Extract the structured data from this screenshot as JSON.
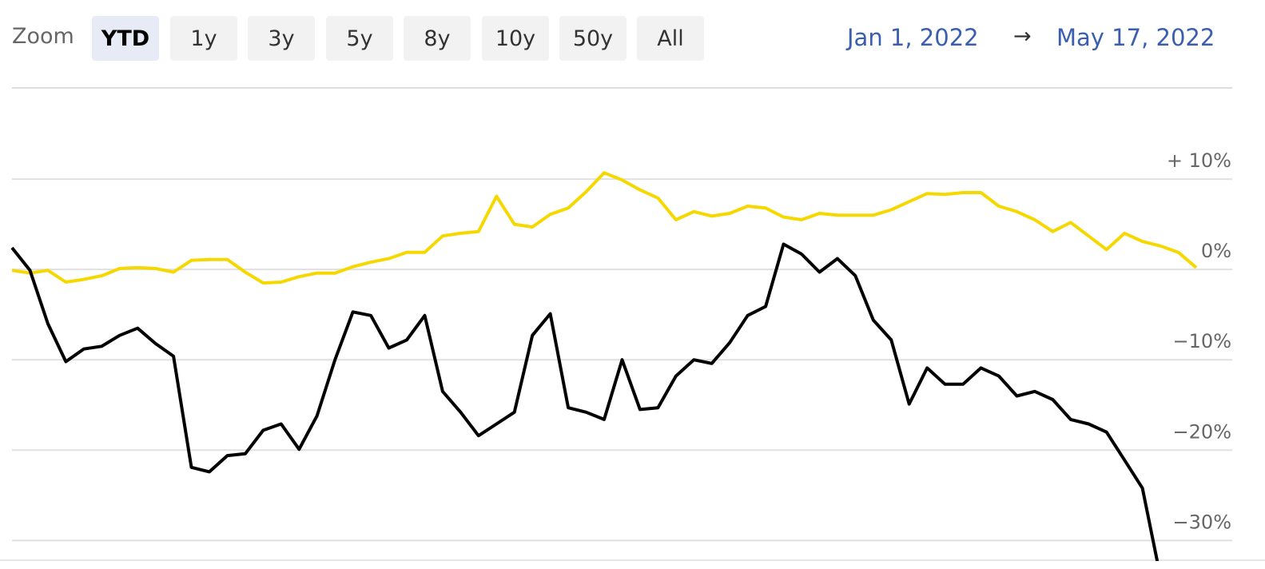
{
  "header": {
    "zoom_label": "Zoom",
    "buttons": [
      "YTD",
      "1y",
      "3y",
      "5y",
      "8y",
      "10y",
      "50y",
      "All"
    ],
    "selected_index": 0,
    "date_from": "Jan 1, 2022",
    "arrow": "→",
    "date_to": "May 17, 2022"
  },
  "chart_data": {
    "type": "line",
    "ylim": [
      -32,
      20
    ],
    "yticks": [
      {
        "value": 10,
        "label": "+ 10%"
      },
      {
        "value": 0,
        "label": "0%"
      },
      {
        "value": -10,
        "label": "−10%"
      },
      {
        "value": -20,
        "label": "−20%"
      },
      {
        "value": -30,
        "label": "−30%"
      }
    ],
    "grid": true,
    "series": [
      {
        "color": "#f5d800",
        "values": [
          -0.1,
          -0.4,
          -0.1,
          -1.4,
          -1.1,
          -0.7,
          0.1,
          0.2,
          0.1,
          -0.3,
          1.0,
          1.1,
          1.1,
          -0.3,
          -1.5,
          -1.4,
          -0.8,
          -0.4,
          -0.4,
          0.3,
          0.8,
          1.2,
          1.9,
          1.9,
          3.7,
          4.0,
          4.2,
          8.1,
          5.0,
          4.7,
          6.1,
          6.8,
          8.6,
          10.7,
          9.9,
          8.8,
          7.9,
          5.5,
          6.4,
          5.9,
          6.2,
          7.0,
          6.8,
          5.8,
          5.5,
          6.2,
          6.0,
          6.0,
          6.0,
          6.6,
          7.5,
          8.4,
          8.3,
          8.5,
          8.5,
          7.0,
          6.4,
          5.5,
          4.2,
          5.2,
          3.7,
          2.2,
          4.0,
          3.1,
          2.6,
          1.9,
          0.2
        ]
      },
      {
        "color": "#000000",
        "values": [
          2.4,
          -0.1,
          -6.0,
          -10.2,
          -8.8,
          -8.5,
          -7.3,
          -6.5,
          -8.2,
          -9.6,
          -21.9,
          -22.4,
          -20.6,
          -20.4,
          -17.8,
          -17.1,
          -19.9,
          -16.2,
          -10.0,
          -4.7,
          -5.1,
          -8.7,
          -7.8,
          -5.1,
          -13.5,
          -15.8,
          -18.4,
          -17.1,
          -15.8,
          -7.3,
          -4.9,
          -15.3,
          -15.8,
          -16.6,
          -10.0,
          -15.5,
          -15.3,
          -11.8,
          -10.0,
          -10.4,
          -8.1,
          -5.1,
          -4.1,
          2.8,
          1.7,
          -0.3,
          1.2,
          -0.7,
          -5.6,
          -7.8,
          -14.9,
          -10.9,
          -12.7,
          -12.7,
          -10.9,
          -11.8,
          -14.0,
          -13.5,
          -14.4,
          -16.6,
          -17.1,
          -18.0,
          -21.1,
          -24.2,
          -34,
          null,
          null
        ]
      }
    ]
  }
}
